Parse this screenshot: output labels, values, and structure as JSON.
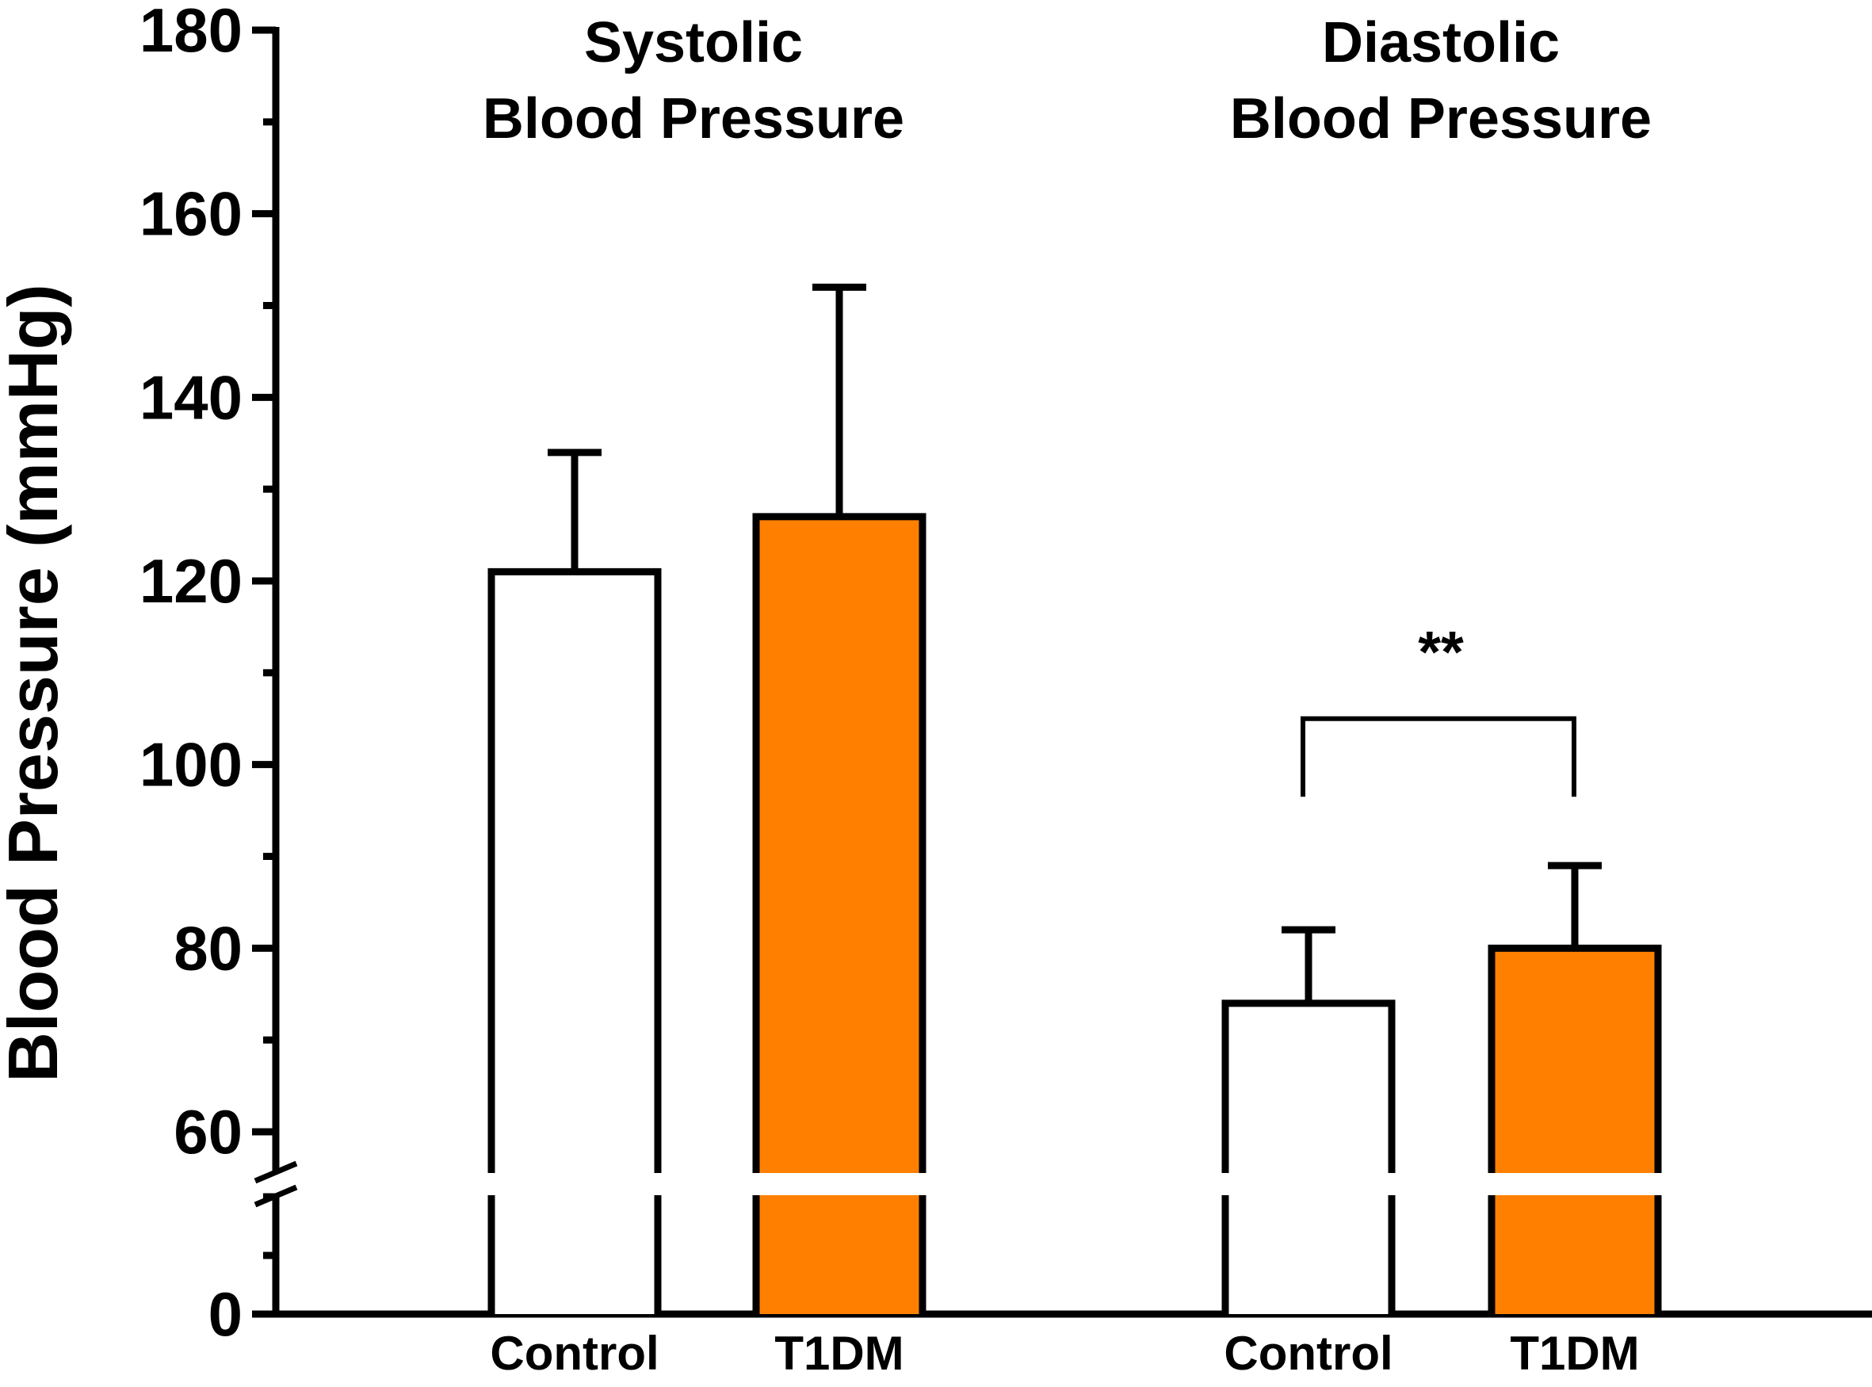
{
  "chart_data": {
    "type": "bar",
    "ylabel": "Blood Pressure (mmHg)",
    "xlabel": "",
    "ylim": [
      0,
      180
    ],
    "axis_break": [
      55,
      60
    ],
    "y_ticks": [
      "0",
      "60",
      "80",
      "100",
      "120",
      "140",
      "160",
      "180"
    ],
    "groups": [
      {
        "title_lines": [
          "Systolic",
          "Blood Pressure"
        ],
        "categories": [
          "Control",
          "T1DM"
        ],
        "values": [
          121,
          127
        ],
        "errors": [
          13,
          25
        ],
        "significance": ""
      },
      {
        "title_lines": [
          "Diastolic",
          "Blood Pressure"
        ],
        "categories": [
          "Control",
          "T1DM"
        ],
        "values": [
          74,
          80
        ],
        "errors": [
          8,
          9
        ],
        "significance": "**"
      }
    ],
    "series_colors": {
      "Control": "#ffffff",
      "T1DM": "#ff8000"
    },
    "grid": false
  }
}
